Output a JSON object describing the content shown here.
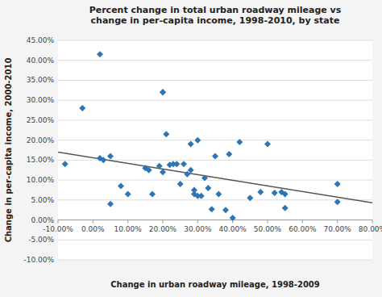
{
  "chart_data": {
    "type": "scatter",
    "title": "Percent change in total urban roadway mileage vs\nchange in per-capita income, 1998-2010, by state",
    "xlabel": "Change in urban roadway mileage, 1998-2009",
    "ylabel": "Change in per-capita income, 2000-2010",
    "series": [
      {
        "type": "scatter",
        "color": "#2E75B6",
        "marker": "diamond",
        "x": [
          -0.08,
          -0.03,
          0.02,
          0.02,
          0.03,
          0.05,
          0.05,
          0.08,
          0.1,
          0.15,
          0.16,
          0.17,
          0.19,
          0.2,
          0.2,
          0.2,
          0.21,
          0.22,
          0.23,
          0.24,
          0.25,
          0.26,
          0.27,
          0.28,
          0.28,
          0.29,
          0.29,
          0.3,
          0.3,
          0.31,
          0.32,
          0.33,
          0.34,
          0.35,
          0.36,
          0.38,
          0.39,
          0.4,
          0.42,
          0.45,
          0.48,
          0.5,
          0.52,
          0.54,
          0.55,
          0.55,
          0.7,
          0.7
        ],
        "values": [
          0.14,
          0.28,
          0.415,
          0.155,
          0.15,
          0.04,
          0.16,
          0.085,
          0.065,
          0.13,
          0.125,
          0.065,
          0.135,
          0.32,
          0.32,
          0.12,
          0.215,
          0.138,
          0.14,
          0.14,
          0.09,
          0.14,
          0.115,
          0.19,
          0.125,
          0.065,
          0.075,
          0.2,
          0.06,
          0.06,
          0.105,
          0.08,
          0.027,
          0.16,
          0.065,
          0.025,
          0.165,
          0.005,
          0.195,
          0.055,
          0.07,
          0.19,
          0.068,
          0.07,
          0.03,
          0.065,
          0.045,
          0.09
        ]
      },
      {
        "type": "line",
        "color": "#555555",
        "line_style": "solid",
        "x": [
          -0.1,
          0.8
        ],
        "values": [
          0.17,
          0.043
        ]
      }
    ],
    "xlim": [
      -0.1,
      0.8
    ],
    "ylim": [
      -0.1,
      0.45
    ],
    "xticks": [
      {
        "value": -0.1,
        "label": "-10.00%"
      },
      {
        "value": 0.0,
        "label": "0.00%"
      },
      {
        "value": 0.1,
        "label": "10.00%"
      },
      {
        "value": 0.2,
        "label": "20.00%"
      },
      {
        "value": 0.3,
        "label": "30.00%"
      },
      {
        "value": 0.4,
        "label": "40.00%"
      },
      {
        "value": 0.5,
        "label": "50.00%"
      },
      {
        "value": 0.6,
        "label": "60.00%"
      },
      {
        "value": 0.7,
        "label": "70.00%"
      },
      {
        "value": 0.8,
        "label": "80.00%"
      }
    ],
    "yticks": [
      {
        "value": -0.1,
        "label": "-10.00%"
      },
      {
        "value": -0.05,
        "label": "-5.00%"
      },
      {
        "value": 0.0,
        "label": "0.00%"
      },
      {
        "value": 0.05,
        "label": "5.00%"
      },
      {
        "value": 0.1,
        "label": "10.00%"
      },
      {
        "value": 0.15,
        "label": "15.00%"
      },
      {
        "value": 0.2,
        "label": "20.00%"
      },
      {
        "value": 0.25,
        "label": "25.00%"
      },
      {
        "value": 0.3,
        "label": "30.00%"
      },
      {
        "value": 0.35,
        "label": "35.00%"
      },
      {
        "value": 0.4,
        "label": "40.00%"
      },
      {
        "value": 0.45,
        "label": "45.00%"
      }
    ],
    "grid": "y"
  }
}
